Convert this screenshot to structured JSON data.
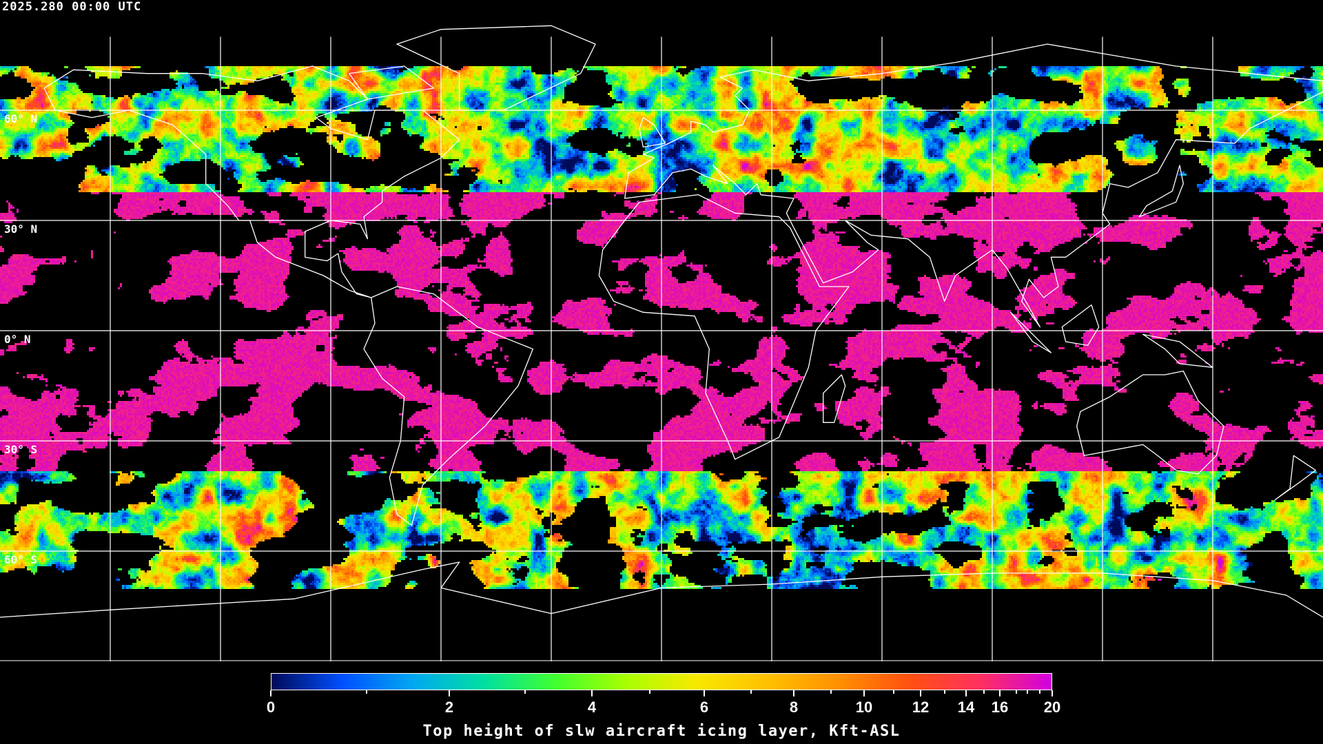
{
  "timestamp": "2025.280 00:00 UTC",
  "latitude_labels": [
    "60° N",
    "30° N",
    "0° N",
    "30° S",
    "60° S"
  ],
  "colorbar": {
    "title": "Top height of slw aircraft icing layer, Kft-ASL",
    "tick_labels": [
      "0",
      "2",
      "4",
      "6",
      "8",
      "10",
      "12",
      "14",
      "16",
      "20"
    ],
    "range": [
      0,
      20
    ],
    "colors": [
      "#000a5a",
      "#0050ff",
      "#00a8f0",
      "#00e0a0",
      "#40ff30",
      "#a8ff00",
      "#f8e800",
      "#ffc000",
      "#ff9000",
      "#ff5010",
      "#ff3060",
      "#d000e0"
    ]
  },
  "map": {
    "projection": "equirectangular",
    "graticule_spacing_deg": 30,
    "coastline_color": "#ffffff",
    "grid_color": "#ffffff",
    "background_color": "#000000"
  }
}
